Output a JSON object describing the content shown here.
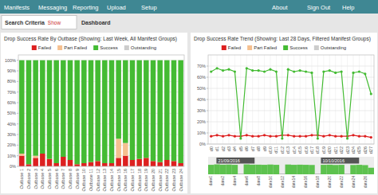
{
  "page": {
    "nav_items_left": [
      "Manifests",
      "Messaging",
      "Reporting",
      "Upload",
      "Setup"
    ],
    "nav_items_right": [
      "About",
      "Sign Out",
      "Help"
    ],
    "tabs": [
      "Search Criteria",
      "Show",
      "Dashboard"
    ]
  },
  "chart_data": [
    {
      "type": "bar",
      "stacked": true,
      "grid": true,
      "title": "Drop Success Rate By Outbase (Showing: Last Week, All Manifest Groups)",
      "categories": [
        "Outbase 1",
        "Outbase 2",
        "Outbase 3",
        "Outbase 4",
        "Outbase 5",
        "Outbase 6",
        "Outbase 7",
        "Outbase 8",
        "Outbase 9",
        "Outbase 10",
        "Outbase 11",
        "Outbase 12",
        "Outbase 13",
        "Outbase 14",
        "Outbase 15",
        "Outbase 16",
        "Outbase 17",
        "Outbase 18",
        "Outbase 19",
        "Outbase 20",
        "Outbase 21",
        "Outbase 22",
        "Outbase 23",
        "Outbase 24"
      ],
      "series": [
        {
          "name": "Failed",
          "color": "#dd2020",
          "values": [
            10,
            2,
            8,
            12,
            7,
            3,
            9,
            6,
            2,
            3,
            4,
            5,
            3,
            3,
            8,
            10,
            6,
            7,
            8,
            5,
            4,
            6,
            5,
            3
          ]
        },
        {
          "name": "Part Failed",
          "color": "#f5c090",
          "values": [
            2,
            0,
            2,
            0,
            0,
            0,
            0,
            0,
            0,
            0,
            0,
            0,
            0,
            0,
            18,
            12,
            0,
            0,
            0,
            0,
            0,
            0,
            0,
            0
          ]
        },
        {
          "name": "Success",
          "color": "#44bb33",
          "values": [
            88,
            98,
            90,
            88,
            93,
            97,
            91,
            94,
            98,
            97,
            96,
            95,
            97,
            97,
            74,
            78,
            94,
            93,
            92,
            95,
            96,
            94,
            95,
            97
          ]
        },
        {
          "name": "Outstanding",
          "color": "#cccccc",
          "values": [
            null,
            null,
            null,
            null,
            null,
            null,
            null,
            null,
            null,
            null,
            null,
            null,
            null,
            null,
            null,
            null,
            null,
            null,
            null,
            null,
            null,
            null,
            null,
            null
          ]
        }
      ],
      "ylim": [
        0,
        105
      ],
      "yticks": [
        {
          "value": 0,
          "label": "0%"
        },
        {
          "value": 10,
          "label": "10%"
        },
        {
          "value": 20,
          "label": "20%"
        },
        {
          "value": 30,
          "label": "30%"
        },
        {
          "value": 40,
          "label": "40%"
        },
        {
          "value": 50,
          "label": "50%"
        },
        {
          "value": 60,
          "label": "60%"
        },
        {
          "value": 70,
          "label": "70%"
        },
        {
          "value": 80,
          "label": "80%"
        },
        {
          "value": 90,
          "label": "90%"
        },
        {
          "value": 100,
          "label": "100%"
        }
      ]
    },
    {
      "type": "line",
      "grid": true,
      "marker": "circle",
      "title": "Drop Success Rate Trend (Showing: Last 28 Days, Filtered Manifest Groups)",
      "categories": [
        "d0",
        "d1",
        "d2",
        "d3",
        "d4",
        "d5",
        "d6",
        "d7",
        "d8",
        "d9",
        "d10",
        "d11",
        "d12",
        "d13",
        "d14",
        "d15",
        "d16",
        "d17",
        "d18",
        "d19",
        "d20",
        "d21",
        "d22",
        "d23",
        "d24",
        "d25",
        "d26",
        "d27"
      ],
      "series": [
        {
          "name": "Failed",
          "color": "#dd2020",
          "values": [
            7,
            8,
            7,
            8,
            7,
            7,
            8,
            7,
            7,
            8,
            7,
            7,
            8,
            8,
            7,
            7,
            7,
            8,
            8,
            7,
            8,
            7,
            7,
            7,
            8,
            7,
            7,
            6
          ]
        },
        {
          "name": "Part Failed",
          "color": "#f5c090",
          "values": [
            null,
            null,
            null,
            null,
            null,
            null,
            null,
            null,
            null,
            null,
            null,
            null,
            null,
            null,
            null,
            null,
            null,
            null,
            null,
            null,
            null,
            null,
            null,
            null,
            null,
            null,
            null,
            null
          ]
        },
        {
          "name": "Success",
          "color": "#44bb33",
          "values": [
            65,
            68,
            66,
            67,
            65,
            5,
            68,
            66,
            66,
            65,
            67,
            65,
            5,
            67,
            65,
            66,
            65,
            64,
            5,
            65,
            66,
            64,
            65,
            5,
            64,
            65,
            63,
            45
          ]
        },
        {
          "name": "Outstanding",
          "color": "#cccccc",
          "values": [
            null,
            null,
            null,
            null,
            null,
            null,
            null,
            null,
            null,
            null,
            null,
            null,
            null,
            null,
            null,
            null,
            null,
            null,
            null,
            null,
            null,
            null,
            null,
            null,
            null,
            null,
            null,
            null
          ]
        }
      ],
      "ylim": [
        0,
        80
      ],
      "yticks": [
        {
          "value": 0,
          "label": "0%"
        },
        {
          "value": 10,
          "label": "10%"
        },
        {
          "value": 20,
          "label": "20%"
        },
        {
          "value": 30,
          "label": "30%"
        },
        {
          "value": 40,
          "label": "40%"
        },
        {
          "value": 50,
          "label": "50%"
        },
        {
          "value": 60,
          "label": "60%"
        },
        {
          "value": 70,
          "label": "70%"
        }
      ]
    },
    {
      "type": "bar",
      "grid": false,
      "tick_labels": "x",
      "categories": [
        "date0",
        null,
        "date2",
        null,
        "date4",
        null,
        "date6",
        null,
        "date8",
        null,
        "date10",
        null,
        "date12",
        null,
        "date14",
        null,
        "date16",
        null,
        "date18",
        null,
        "date20",
        null,
        "date22",
        null,
        "date24",
        null,
        "date26",
        null
      ],
      "values": [
        65,
        68,
        66,
        67,
        65,
        5,
        68,
        66,
        66,
        65,
        67,
        65,
        5,
        67,
        65,
        66,
        65,
        64,
        5,
        65,
        66,
        64,
        65,
        5,
        64,
        65,
        63,
        45
      ],
      "colors": [
        "#44bb33",
        "#44bb33",
        "#44bb33",
        "#44bb33",
        "#44bb33",
        "#aaaaaa",
        "#44bb33",
        "#44bb33",
        "#44bb33",
        "#44bb33",
        "#44bb33",
        "#44bb33",
        "#aaaaaa",
        "#44bb33",
        "#44bb33",
        "#44bb33",
        "#44bb33",
        "#44bb33",
        "#aaaaaa",
        "#44bb33",
        "#44bb33",
        "#44bb33",
        "#44bb33",
        "#aaaaaa",
        "#44bb33",
        "#44bb33",
        "#44bb33",
        "#44bb33"
      ],
      "ylim": [
        0,
        120
      ],
      "annotations": [
        "21/09/2016",
        "10/10/2016"
      ]
    }
  ]
}
